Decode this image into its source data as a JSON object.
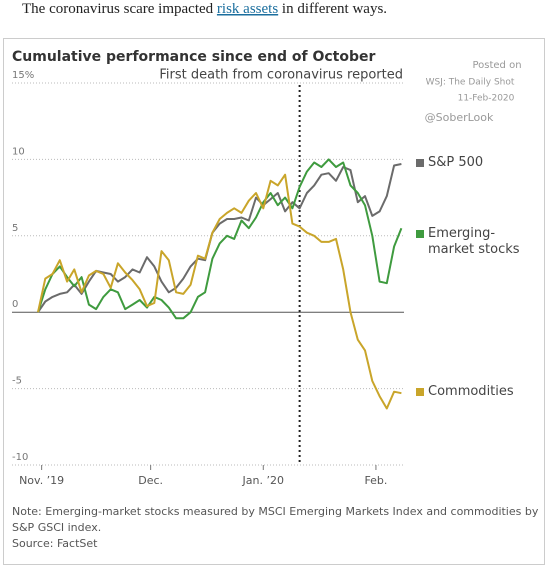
{
  "header": {
    "before": "The coronavirus scare impacted ",
    "link": "risk assets",
    "after": " in different ways."
  },
  "chart_data": {
    "type": "line",
    "title": "Cumulative performance since end of October",
    "annotations": [
      {
        "x": 72,
        "text": "First death from coronavirus reported"
      }
    ],
    "watermark": [
      "Posted on",
      "WSJ: The Daily Shot",
      "11-Feb-2020",
      "@SoberLook"
    ],
    "x": [
      0,
      2,
      4,
      6,
      8,
      10,
      12,
      14,
      16,
      18,
      20,
      22,
      24,
      26,
      28,
      30,
      32,
      34,
      36,
      38,
      40,
      42,
      44,
      46,
      48,
      50,
      52,
      54,
      56,
      58,
      60,
      62,
      64,
      66,
      68,
      70,
      72,
      74,
      76,
      78,
      80,
      82,
      84,
      86,
      88,
      90,
      92,
      94,
      96,
      98,
      100
    ],
    "xlim": [
      0,
      101
    ],
    "xticks": [
      {
        "value": 1,
        "label": "Nov. ’19"
      },
      {
        "value": 31,
        "label": "Dec."
      },
      {
        "value": 62,
        "label": "Jan. ’20"
      },
      {
        "value": 93,
        "label": "Feb."
      }
    ],
    "ylim": [
      -10,
      15
    ],
    "yticks": [
      {
        "value": 15,
        "label": "15%"
      },
      10,
      5,
      0,
      -5,
      -10
    ],
    "grid": true,
    "series": [
      {
        "name": "S&P 500",
        "color": "#6b6b6b",
        "values": [
          0,
          0.7,
          1.0,
          1.2,
          1.3,
          1.8,
          1.2,
          2.0,
          2.7,
          2.6,
          2.5,
          2.0,
          2.3,
          2.8,
          2.6,
          3.6,
          3.0,
          2.0,
          1.3,
          1.6,
          2.2,
          3.0,
          3.5,
          3.4,
          5.2,
          5.8,
          6.1,
          6.1,
          6.2,
          6.0,
          7.5,
          7.0,
          7.4,
          7.8,
          6.6,
          7.2,
          6.8,
          7.8,
          8.3,
          9.0,
          9.1,
          8.6,
          9.5,
          9.3,
          7.2,
          7.6,
          6.3,
          6.6,
          7.6,
          9.6,
          9.7
        ]
      },
      {
        "name": "Emerging-market stocks",
        "color": "#3f9b3f",
        "values": [
          0,
          1.5,
          2.5,
          3.0,
          2.3,
          1.7,
          2.3,
          0.5,
          0.2,
          1.0,
          1.5,
          1.3,
          0.2,
          0.5,
          0.8,
          0.3,
          1.0,
          0.8,
          0.3,
          -0.4,
          -0.4,
          0,
          1.0,
          1.3,
          3.5,
          4.5,
          5.0,
          4.8,
          6.0,
          5.5,
          6.2,
          7.2,
          7.8,
          7.0,
          7.5,
          6.8,
          8.2,
          9.2,
          9.8,
          9.5,
          10.0,
          9.5,
          9.8,
          8.3,
          7.8,
          7.0,
          5.0,
          2.0,
          1.9,
          4.3,
          5.5
        ]
      },
      {
        "name": "Commodities",
        "color": "#c9a52a",
        "values": [
          0,
          2.2,
          2.5,
          3.4,
          2.0,
          2.8,
          1.3,
          2.4,
          2.7,
          2.5,
          1.6,
          3.2,
          2.6,
          2.1,
          1.5,
          0.4,
          0.6,
          4.0,
          3.4,
          1.3,
          1.2,
          1.8,
          3.7,
          3.5,
          5.2,
          6.1,
          6.5,
          6.8,
          6.5,
          7.3,
          7.8,
          6.8,
          8.6,
          8.3,
          9.0,
          5.8,
          5.6,
          5.2,
          5.0,
          4.6,
          4.6,
          4.8,
          2.8,
          0.0,
          -1.8,
          -2.5,
          -4.5,
          -5.5,
          -6.3,
          -5.2,
          -5.3
        ]
      }
    ]
  },
  "note": "Note: Emerging-market stocks measured by MSCI Emerging Markets Index and commodities by S&P GSCI index.",
  "source": "Source: FactSet"
}
